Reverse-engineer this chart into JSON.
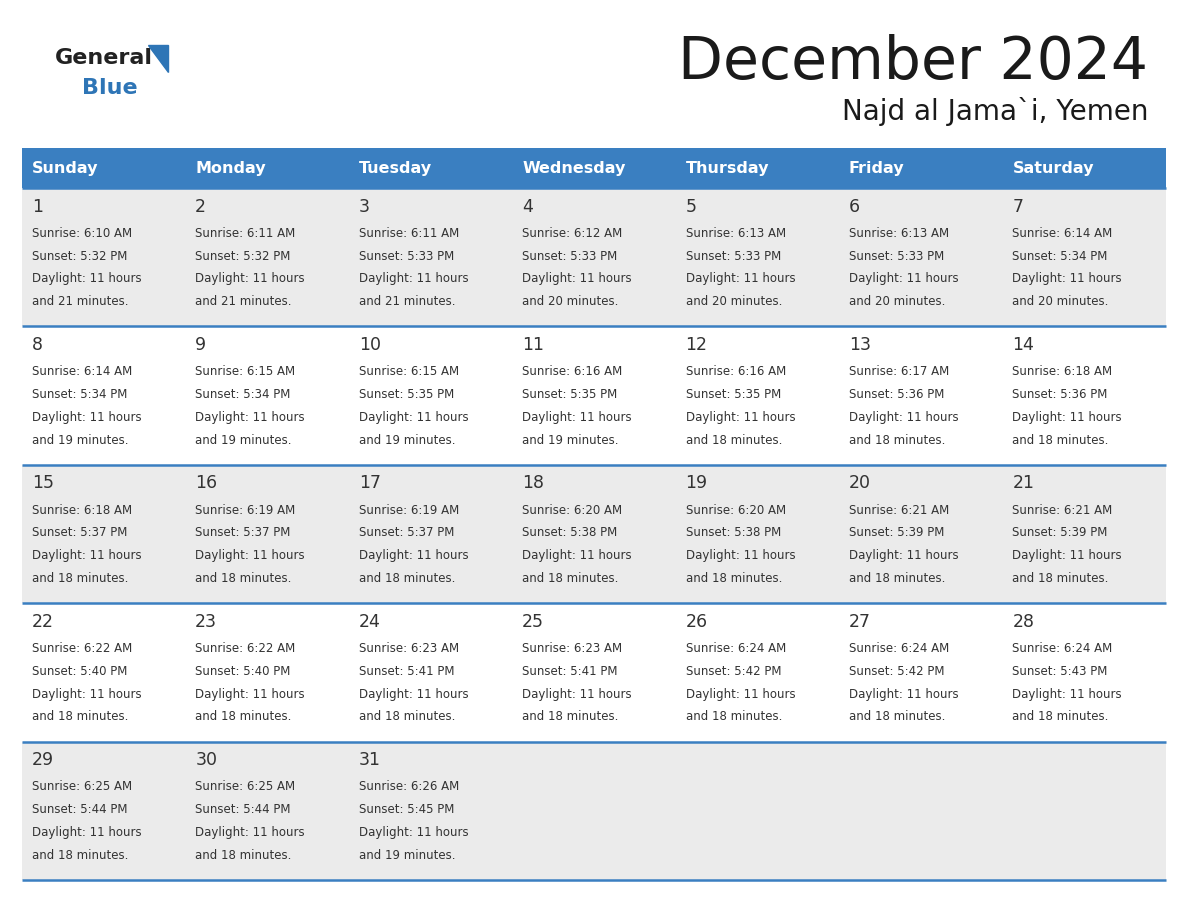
{
  "title": "December 2024",
  "subtitle": "Najd al Jama`i, Yemen",
  "header_color": "#3A7FC1",
  "header_text_color": "#FFFFFF",
  "day_names": [
    "Sunday",
    "Monday",
    "Tuesday",
    "Wednesday",
    "Thursday",
    "Friday",
    "Saturday"
  ],
  "bg_color": "#FFFFFF",
  "cell_bg_even": "#EBEBEB",
  "cell_bg_odd": "#FFFFFF",
  "line_color": "#3A7FC1",
  "date_color": "#333333",
  "text_color": "#333333",
  "logo_general_color": "#222222",
  "logo_blue_color": "#2E75B6",
  "calendar_data": [
    [
      {
        "day": 1,
        "sunrise": "6:10 AM",
        "sunset": "5:32 PM",
        "daylight": "11 hours and 21 minutes"
      },
      {
        "day": 2,
        "sunrise": "6:11 AM",
        "sunset": "5:32 PM",
        "daylight": "11 hours and 21 minutes"
      },
      {
        "day": 3,
        "sunrise": "6:11 AM",
        "sunset": "5:33 PM",
        "daylight": "11 hours and 21 minutes"
      },
      {
        "day": 4,
        "sunrise": "6:12 AM",
        "sunset": "5:33 PM",
        "daylight": "11 hours and 20 minutes"
      },
      {
        "day": 5,
        "sunrise": "6:13 AM",
        "sunset": "5:33 PM",
        "daylight": "11 hours and 20 minutes"
      },
      {
        "day": 6,
        "sunrise": "6:13 AM",
        "sunset": "5:33 PM",
        "daylight": "11 hours and 20 minutes"
      },
      {
        "day": 7,
        "sunrise": "6:14 AM",
        "sunset": "5:34 PM",
        "daylight": "11 hours and 20 minutes"
      }
    ],
    [
      {
        "day": 8,
        "sunrise": "6:14 AM",
        "sunset": "5:34 PM",
        "daylight": "11 hours and 19 minutes"
      },
      {
        "day": 9,
        "sunrise": "6:15 AM",
        "sunset": "5:34 PM",
        "daylight": "11 hours and 19 minutes"
      },
      {
        "day": 10,
        "sunrise": "6:15 AM",
        "sunset": "5:35 PM",
        "daylight": "11 hours and 19 minutes"
      },
      {
        "day": 11,
        "sunrise": "6:16 AM",
        "sunset": "5:35 PM",
        "daylight": "11 hours and 19 minutes"
      },
      {
        "day": 12,
        "sunrise": "6:16 AM",
        "sunset": "5:35 PM",
        "daylight": "11 hours and 18 minutes"
      },
      {
        "day": 13,
        "sunrise": "6:17 AM",
        "sunset": "5:36 PM",
        "daylight": "11 hours and 18 minutes"
      },
      {
        "day": 14,
        "sunrise": "6:18 AM",
        "sunset": "5:36 PM",
        "daylight": "11 hours and 18 minutes"
      }
    ],
    [
      {
        "day": 15,
        "sunrise": "6:18 AM",
        "sunset": "5:37 PM",
        "daylight": "11 hours and 18 minutes"
      },
      {
        "day": 16,
        "sunrise": "6:19 AM",
        "sunset": "5:37 PM",
        "daylight": "11 hours and 18 minutes"
      },
      {
        "day": 17,
        "sunrise": "6:19 AM",
        "sunset": "5:37 PM",
        "daylight": "11 hours and 18 minutes"
      },
      {
        "day": 18,
        "sunrise": "6:20 AM",
        "sunset": "5:38 PM",
        "daylight": "11 hours and 18 minutes"
      },
      {
        "day": 19,
        "sunrise": "6:20 AM",
        "sunset": "5:38 PM",
        "daylight": "11 hours and 18 minutes"
      },
      {
        "day": 20,
        "sunrise": "6:21 AM",
        "sunset": "5:39 PM",
        "daylight": "11 hours and 18 minutes"
      },
      {
        "day": 21,
        "sunrise": "6:21 AM",
        "sunset": "5:39 PM",
        "daylight": "11 hours and 18 minutes"
      }
    ],
    [
      {
        "day": 22,
        "sunrise": "6:22 AM",
        "sunset": "5:40 PM",
        "daylight": "11 hours and 18 minutes"
      },
      {
        "day": 23,
        "sunrise": "6:22 AM",
        "sunset": "5:40 PM",
        "daylight": "11 hours and 18 minutes"
      },
      {
        "day": 24,
        "sunrise": "6:23 AM",
        "sunset": "5:41 PM",
        "daylight": "11 hours and 18 minutes"
      },
      {
        "day": 25,
        "sunrise": "6:23 AM",
        "sunset": "5:41 PM",
        "daylight": "11 hours and 18 minutes"
      },
      {
        "day": 26,
        "sunrise": "6:24 AM",
        "sunset": "5:42 PM",
        "daylight": "11 hours and 18 minutes"
      },
      {
        "day": 27,
        "sunrise": "6:24 AM",
        "sunset": "5:42 PM",
        "daylight": "11 hours and 18 minutes"
      },
      {
        "day": 28,
        "sunrise": "6:24 AM",
        "sunset": "5:43 PM",
        "daylight": "11 hours and 18 minutes"
      }
    ],
    [
      {
        "day": 29,
        "sunrise": "6:25 AM",
        "sunset": "5:44 PM",
        "daylight": "11 hours and 18 minutes"
      },
      {
        "day": 30,
        "sunrise": "6:25 AM",
        "sunset": "5:44 PM",
        "daylight": "11 hours and 18 minutes"
      },
      {
        "day": 31,
        "sunrise": "6:26 AM",
        "sunset": "5:45 PM",
        "daylight": "11 hours and 19 minutes"
      },
      null,
      null,
      null,
      null
    ]
  ]
}
